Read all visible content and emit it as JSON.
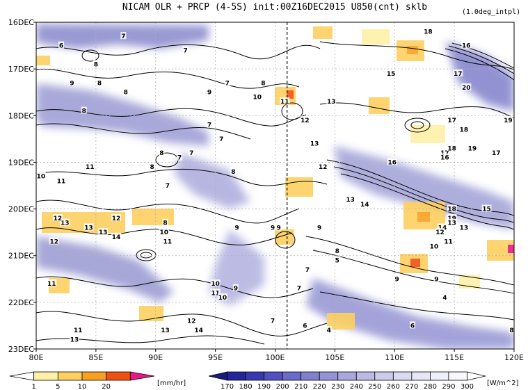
{
  "chart_data": {
    "type": "heatmap",
    "title": "NICAM  OLR + PRCP (4-5S) init:00Z16DEC2015 U850(cnt) sklb",
    "subtitle": "(1.0deg_intpl)",
    "x_ticks": [
      "80E",
      "85E",
      "90E",
      "95E",
      "100E",
      "105E",
      "110E",
      "115E",
      "120E"
    ],
    "x_values": [
      80,
      85,
      90,
      95,
      100,
      105,
      110,
      115,
      120
    ],
    "xlim": [
      80,
      120
    ],
    "y_ticks": [
      "16DEC",
      "17DEC",
      "18DEC",
      "19DEC",
      "20DEC",
      "21DEC",
      "22DEC",
      "23DEC"
    ],
    "y_values": [
      16,
      17,
      18,
      19,
      20,
      21,
      22,
      23
    ],
    "ylim": [
      16,
      23
    ],
    "reference_line_lon": 101,
    "precip_colorbar": {
      "unit": "[mm/hr]",
      "labels": [
        "1",
        "5",
        "10",
        "20"
      ],
      "colors": [
        "#ffffff",
        "#fff0a8",
        "#fdd060",
        "#f9a020",
        "#f05010",
        "#e8188a"
      ]
    },
    "olr_colorbar": {
      "unit": "[W/m^2]",
      "labels": [
        "170",
        "180",
        "190",
        "200",
        "210",
        "220",
        "230",
        "240",
        "250",
        "260",
        "270",
        "280",
        "290",
        "300"
      ],
      "colors": [
        "#1a1a80",
        "#24249a",
        "#3838b0",
        "#5050c0",
        "#6a6ac8",
        "#8080cc",
        "#9494d4",
        "#a8a8dc",
        "#babae4",
        "#ccccec",
        "#dadaf2",
        "#e6e6f6",
        "#f0f0fa",
        "#f8f8fc",
        "#ffffff"
      ]
    },
    "contour_labels": [
      {
        "t": "7",
        "lon": 87.3,
        "day": 16.3
      },
      {
        "t": "6",
        "lon": 82.1,
        "day": 16.5
      },
      {
        "t": "7",
        "lon": 92.5,
        "day": 16.6
      },
      {
        "t": "8",
        "lon": 85.0,
        "day": 16.9
      },
      {
        "t": "9",
        "lon": 83.0,
        "day": 17.3
      },
      {
        "t": "8",
        "lon": 85.3,
        "day": 17.3
      },
      {
        "t": "8",
        "lon": 87.5,
        "day": 17.5
      },
      {
        "t": "8",
        "lon": 84.0,
        "day": 17.9
      },
      {
        "t": "7",
        "lon": 96.0,
        "day": 17.3
      },
      {
        "t": "9",
        "lon": 94.5,
        "day": 17.5
      },
      {
        "t": "8",
        "lon": 99.0,
        "day": 17.3
      },
      {
        "t": "10",
        "lon": 98.5,
        "day": 17.6
      },
      {
        "t": "11",
        "lon": 100.8,
        "day": 17.7
      },
      {
        "t": "12",
        "lon": 102.5,
        "day": 18.1
      },
      {
        "t": "13",
        "lon": 104.7,
        "day": 17.7
      },
      {
        "t": "7",
        "lon": 94.5,
        "day": 18.2
      },
      {
        "t": "7",
        "lon": 95.5,
        "day": 18.5
      },
      {
        "t": "13",
        "lon": 103.3,
        "day": 18.6
      },
      {
        "t": "8",
        "lon": 90.5,
        "day": 18.8
      },
      {
        "t": "7",
        "lon": 92.0,
        "day": 18.9
      },
      {
        "t": "7",
        "lon": 93.0,
        "day": 18.8
      },
      {
        "t": "11",
        "lon": 84.5,
        "day": 19.1
      },
      {
        "t": "10",
        "lon": 80.4,
        "day": 19.3
      },
      {
        "t": "11",
        "lon": 82.1,
        "day": 19.4
      },
      {
        "t": "8",
        "lon": 89.7,
        "day": 19.1
      },
      {
        "t": "7",
        "lon": 91.0,
        "day": 19.5
      },
      {
        "t": "8",
        "lon": 96.5,
        "day": 19.2
      },
      {
        "t": "12",
        "lon": 104.0,
        "day": 19.1
      },
      {
        "t": "16",
        "lon": 109.8,
        "day": 19.0
      },
      {
        "t": "17",
        "lon": 114.2,
        "day": 18.8
      },
      {
        "t": "16",
        "lon": 114.2,
        "day": 18.9
      },
      {
        "t": "18",
        "lon": 114.8,
        "day": 18.7
      },
      {
        "t": "19",
        "lon": 116.5,
        "day": 18.7
      },
      {
        "t": "17",
        "lon": 118.5,
        "day": 18.8
      },
      {
        "t": "18",
        "lon": 112.8,
        "day": 16.2
      },
      {
        "t": "16",
        "lon": 116.0,
        "day": 16.5
      },
      {
        "t": "15",
        "lon": 109.7,
        "day": 17.1
      },
      {
        "t": "17",
        "lon": 115.3,
        "day": 17.1
      },
      {
        "t": "20",
        "lon": 116.0,
        "day": 17.4
      },
      {
        "t": "17",
        "lon": 114.8,
        "day": 18.1
      },
      {
        "t": "18",
        "lon": 115.8,
        "day": 18.3
      },
      {
        "t": "19",
        "lon": 119.5,
        "day": 18.1
      },
      {
        "t": "13",
        "lon": 106.3,
        "day": 19.8
      },
      {
        "t": "14",
        "lon": 107.5,
        "day": 19.9
      },
      {
        "t": "18",
        "lon": 114.8,
        "day": 20.0
      },
      {
        "t": "19",
        "lon": 114.8,
        "day": 20.2
      },
      {
        "t": "15",
        "lon": 117.7,
        "day": 20.0
      },
      {
        "t": "13",
        "lon": 114.8,
        "day": 20.3
      },
      {
        "t": "13",
        "lon": 115.8,
        "day": 20.4
      },
      {
        "t": "14",
        "lon": 114.0,
        "day": 20.4
      },
      {
        "t": "12",
        "lon": 113.8,
        "day": 20.5
      },
      {
        "t": "11",
        "lon": 114.5,
        "day": 20.7
      },
      {
        "t": "10",
        "lon": 113.3,
        "day": 20.8
      },
      {
        "t": "13",
        "lon": 82.4,
        "day": 20.3
      },
      {
        "t": "12",
        "lon": 81.8,
        "day": 20.2
      },
      {
        "t": "12",
        "lon": 86.7,
        "day": 20.2
      },
      {
        "t": "8",
        "lon": 90.8,
        "day": 20.3
      },
      {
        "t": "10",
        "lon": 90.7,
        "day": 20.5
      },
      {
        "t": "13",
        "lon": 84.4,
        "day": 20.4
      },
      {
        "t": "13",
        "lon": 85.6,
        "day": 20.5
      },
      {
        "t": "14",
        "lon": 86.7,
        "day": 20.6
      },
      {
        "t": "12",
        "lon": 81.5,
        "day": 20.7
      },
      {
        "t": "11",
        "lon": 91.0,
        "day": 20.7
      },
      {
        "t": "9",
        "lon": 96.8,
        "day": 20.4
      },
      {
        "t": "9",
        "lon": 99.8,
        "day": 20.4
      },
      {
        "t": "9",
        "lon": 100.3,
        "day": 20.4
      },
      {
        "t": "9",
        "lon": 103.7,
        "day": 20.4
      },
      {
        "t": "8",
        "lon": 105.2,
        "day": 20.9
      },
      {
        "t": "5",
        "lon": 105.2,
        "day": 21.1
      },
      {
        "t": "7",
        "lon": 102.7,
        "day": 21.3
      },
      {
        "t": "11",
        "lon": 81.3,
        "day": 21.6
      },
      {
        "t": "9",
        "lon": 110.2,
        "day": 21.5
      },
      {
        "t": "9",
        "lon": 113.5,
        "day": 21.5
      },
      {
        "t": "10",
        "lon": 95.0,
        "day": 21.6
      },
      {
        "t": "9",
        "lon": 96.7,
        "day": 21.7
      },
      {
        "t": "11",
        "lon": 95.0,
        "day": 21.8
      },
      {
        "t": "10",
        "lon": 95.6,
        "day": 21.9
      },
      {
        "t": "7",
        "lon": 102.0,
        "day": 21.7
      },
      {
        "t": "4",
        "lon": 114.2,
        "day": 21.9
      },
      {
        "t": "12",
        "lon": 93.0,
        "day": 22.4
      },
      {
        "t": "11",
        "lon": 83.5,
        "day": 22.6
      },
      {
        "t": "13",
        "lon": 90.8,
        "day": 22.6
      },
      {
        "t": "14",
        "lon": 93.6,
        "day": 22.6
      },
      {
        "t": "13",
        "lon": 83.2,
        "day": 22.8
      },
      {
        "t": "7",
        "lon": 99.8,
        "day": 22.4
      },
      {
        "t": "6",
        "lon": 102.5,
        "day": 22.5
      },
      {
        "t": "4",
        "lon": 104.5,
        "day": 22.6
      },
      {
        "t": "6",
        "lon": 111.5,
        "day": 22.5
      },
      {
        "t": "8",
        "lon": 119.8,
        "day": 22.6
      }
    ]
  }
}
